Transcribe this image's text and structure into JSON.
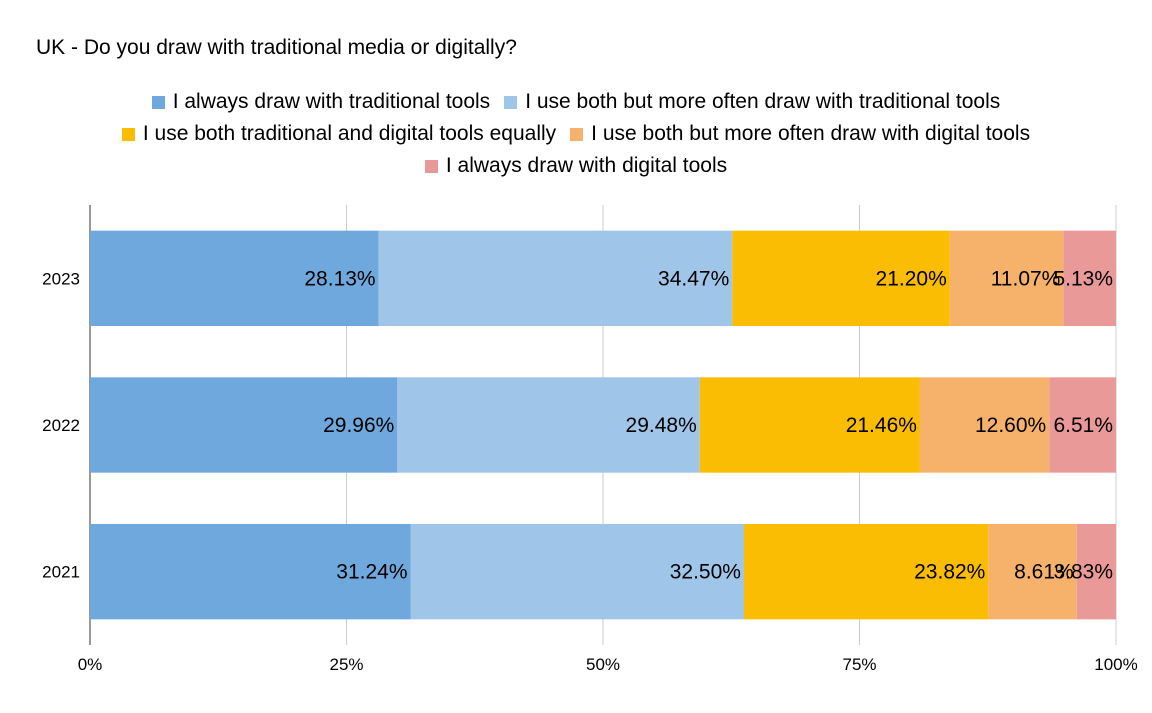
{
  "chart_data": {
    "type": "bar",
    "orientation": "horizontal",
    "stacked": "percent",
    "title": "UK - Do you draw with traditional media or digitally?",
    "categories": [
      "2023",
      "2022",
      "2021"
    ],
    "series": [
      {
        "name": "I always draw with traditional tools",
        "color": "#6fa8dc",
        "values": [
          28.13,
          29.96,
          31.24
        ],
        "labels": [
          "28.13%",
          "29.96%",
          "31.24%"
        ]
      },
      {
        "name": "I use both but more often draw with traditional tools",
        "color": "#9fc5e8",
        "values": [
          34.47,
          29.48,
          32.5
        ],
        "labels": [
          "34.47%",
          "29.48%",
          "32.50%"
        ]
      },
      {
        "name": "I use both traditional and digital tools equally",
        "color": "#fbbc04",
        "values": [
          21.2,
          21.46,
          23.82
        ],
        "labels": [
          "21.20%",
          "21.46%",
          "23.82%"
        ]
      },
      {
        "name": "I use both but more often draw with digital tools",
        "color": "#f6b26b",
        "values": [
          11.07,
          12.6,
          8.61
        ],
        "labels": [
          "11.07%",
          "12.60%",
          "8.61%"
        ]
      },
      {
        "name": "I always draw with digital tools",
        "color": "#ea9999",
        "values": [
          5.13,
          6.51,
          3.83
        ],
        "labels": [
          "5.13%",
          "6.51%",
          "3.83%"
        ]
      }
    ],
    "xlim": [
      0,
      100
    ],
    "x_ticks": [
      "0%",
      "25%",
      "50%",
      "75%",
      "100%"
    ],
    "grid": true,
    "legend_position": "top-center"
  }
}
